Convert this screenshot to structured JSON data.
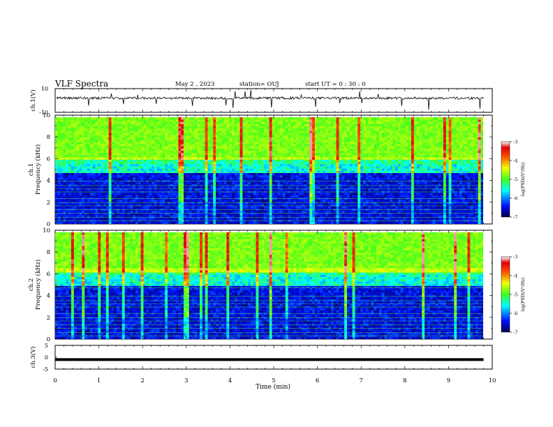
{
  "header": {
    "title": "VLF Spectra",
    "date": "May 2 , 2023",
    "station": "station= OUJ",
    "start": "start UT = 0 : 30 : 0"
  },
  "chart_data": [
    {
      "type": "line",
      "panel": "ch1-waveform",
      "ylabel": "ch.1(V)",
      "ylim": [
        -10,
        10
      ],
      "yticks": [
        "10",
        "-10"
      ],
      "xlim": [
        0,
        10
      ],
      "description_values": {
        "baseline": 2,
        "noise_amplitude": 1
      }
    },
    {
      "type": "heatmap",
      "panel": "ch1-spectrogram",
      "ylabel_line1": "ch.1",
      "ylabel_line2": "Frequency (kHz)",
      "ylim": [
        0,
        10
      ],
      "yticks": [
        "0",
        "2",
        "4",
        "6",
        "8",
        "10"
      ],
      "xlim": [
        0,
        9.8
      ],
      "colorbar": {
        "label": "log(PSD)(V²/Hz)",
        "range": [
          -7,
          -3
        ],
        "ticks": [
          "-3",
          "-4",
          "-5",
          "-6",
          "-7"
        ]
      },
      "band_edge_khz": 6.0
    },
    {
      "type": "heatmap",
      "panel": "ch2-spectrogram",
      "ylabel_line1": "ch.2",
      "ylabel_line2": "Frequency (kHz)",
      "ylim": [
        0,
        10
      ],
      "yticks": [
        "0",
        "2",
        "4",
        "6",
        "8",
        "10"
      ],
      "xlim": [
        0,
        9.8
      ],
      "colorbar": {
        "label": "log(PSD)(V²/Hz)",
        "range": [
          -7,
          -3
        ],
        "ticks": [
          "-3",
          "-4",
          "-5",
          "-6",
          "-7"
        ]
      },
      "band_edge_khz": 6.3
    },
    {
      "type": "line",
      "panel": "ch3-waveform",
      "ylabel": "ch.3(V)",
      "ylim": [
        -5,
        5
      ],
      "yticks": [
        "5",
        "0",
        "-5"
      ],
      "xlim": [
        0,
        10
      ],
      "xlabel": "Time (min)",
      "xticks": [
        "0",
        "1",
        "2",
        "3",
        "4",
        "5",
        "6",
        "7",
        "8",
        "9",
        "10"
      ],
      "constant_value": -1
    }
  ]
}
